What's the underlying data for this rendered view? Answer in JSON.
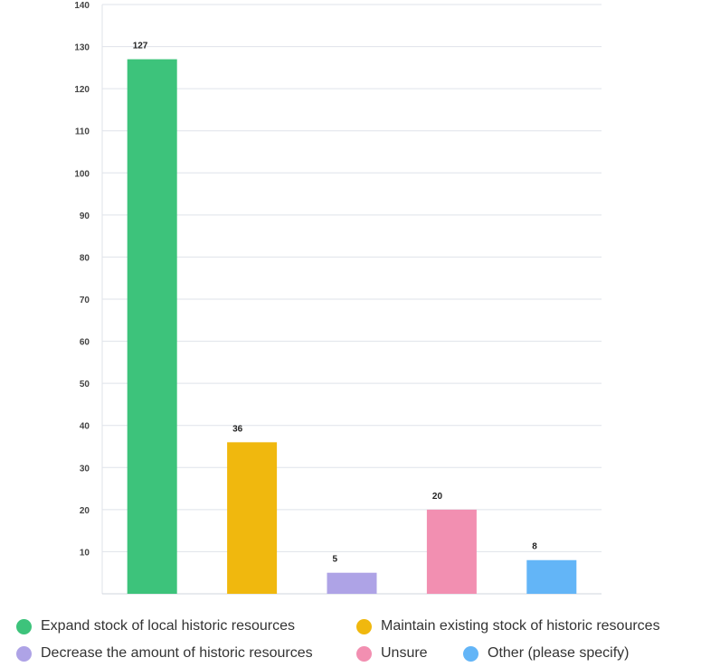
{
  "chart_data": {
    "type": "bar",
    "categories": [
      "Expand stock of local historic resources",
      "Maintain existing stock of historic resources",
      "Decrease the amount of historic resources",
      "Unsure",
      "Other (please specify)"
    ],
    "values": [
      127,
      36,
      5,
      20,
      8
    ],
    "data_labels": [
      "127",
      "36",
      "5",
      "20",
      "8"
    ],
    "colors": [
      "#3dc37b",
      "#f0b80e",
      "#aea3e6",
      "#f28fb1",
      "#63b5f7"
    ],
    "ylim": [
      0,
      140
    ],
    "yticks": [
      10,
      20,
      30,
      40,
      50,
      60,
      70,
      80,
      90,
      100,
      110,
      120,
      130,
      140
    ],
    "grid": true,
    "legend_position": "bottom"
  },
  "legend": {
    "items": [
      {
        "label": "Expand stock of local historic resources",
        "color": "#3dc37b"
      },
      {
        "label": "Maintain existing stock of historic resources",
        "color": "#f0b80e"
      },
      {
        "label": "Decrease the amount of historic resources",
        "color": "#aea3e6"
      },
      {
        "label": "Unsure",
        "color": "#f28fb1"
      },
      {
        "label": "Other (please specify)",
        "color": "#63b5f7"
      }
    ]
  }
}
